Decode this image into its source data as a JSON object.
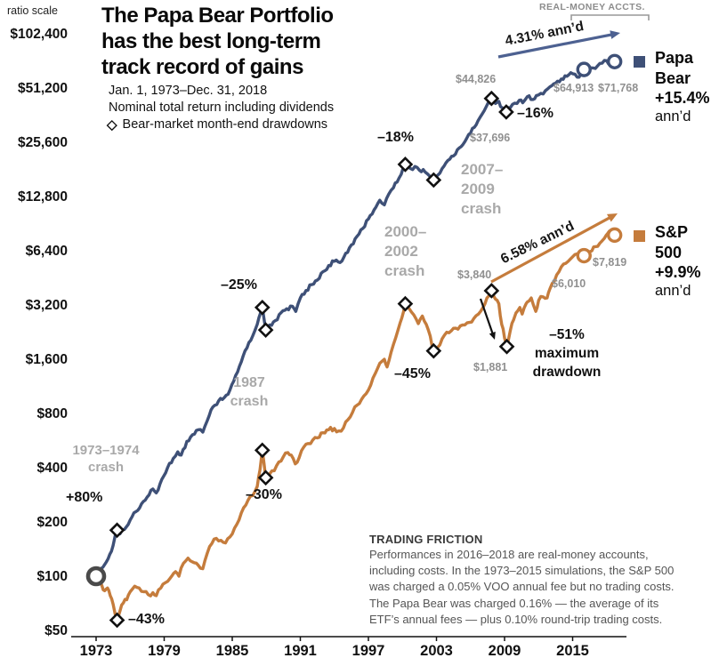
{
  "header": {
    "ratio_scale": "ratio scale",
    "title": "The Papa Bear Portfolio\nhas the best long-term\ntrack record of gains",
    "subtitle_period": "Jan. 1, 1973–Dec. 31, 2018",
    "subtitle_return": "Nominal total return including dividends",
    "drawdown_glyph": "◇",
    "drawdown_legend": "Bear-market month-end drawdowns",
    "real_money": "REAL-MONEY ACCTS."
  },
  "legend": {
    "papa": {
      "label": "Papa\nBear\n+15.4%",
      "annd": "ann’d",
      "color": "#3e5077"
    },
    "sp": {
      "label": "S&P\n500\n+9.9%",
      "annd": "ann’d",
      "color": "#c57c3c"
    }
  },
  "annotations": {
    "annual_papa": "4.31% ann’d",
    "annual_sp": "6.58% ann’d",
    "crash_7374": "1973–1974\ncrash",
    "crash_1987": "1987\ncrash",
    "crash_2000": "2000–\n2002\ncrash",
    "crash_2007": "2007–\n2009\ncrash",
    "gain_80": "+80%",
    "dd_43": "–43%",
    "dd_25": "–25%",
    "dd_30": "–30%",
    "dd_18": "–18%",
    "dd_45": "–45%",
    "dd_16": "–16%",
    "max_dd": "–51%\nmaximum\ndrawdown",
    "val_44826": "$44,826",
    "val_37696": "$37,696",
    "val_64913": "$64,913",
    "val_71768": "$71,768",
    "val_3840": "$3,840",
    "val_1881": "$1,881",
    "val_6010": "$6,010",
    "val_7819": "$7,819"
  },
  "footnote": {
    "heading": "TRADING FRICTION",
    "body": "Performances in 2016–2018 are real-money accounts,\nincluding costs. In the 1973–2015 simulations, the S&P 500\nwas charged a 0.05% VOO annual fee but no trading costs.\nThe Papa Bear was charged 0.16% — the average of its\nETF’s annual fees — plus 0.10% round-trip trading costs.",
    "heading_color": "#3a3a3a",
    "body_color": "#555555"
  },
  "chart_data": {
    "type": "line",
    "title": "The Papa Bear Portfolio has the best long-term track record of gains",
    "xlabel": "",
    "ylabel": "ratio scale (log2)",
    "y_scale": "log2",
    "grid": false,
    "legend_position": "right",
    "x_range": [
      1973,
      2019
    ],
    "y_range": [
      50,
      102400
    ],
    "x_ticks": [
      1973,
      1979,
      1985,
      1991,
      1997,
      2003,
      2009,
      2015
    ],
    "y_ticks": [
      {
        "v": 102400,
        "label": "$102,400"
      },
      {
        "v": 51200,
        "label": "$51,200"
      },
      {
        "v": 25600,
        "label": "$25,600"
      },
      {
        "v": 12800,
        "label": "$12,800"
      },
      {
        "v": 6400,
        "label": "$6,400"
      },
      {
        "v": 3200,
        "label": "$3,200"
      },
      {
        "v": 1600,
        "label": "$1,600"
      },
      {
        "v": 800,
        "label": "$800"
      },
      {
        "v": 400,
        "label": "$400"
      },
      {
        "v": 200,
        "label": "$200"
      },
      {
        "v": 100,
        "label": "$100"
      },
      {
        "v": 50,
        "label": "$50"
      }
    ],
    "series": [
      {
        "name": "Papa Bear",
        "annualized": "+15.4% ann'd",
        "start_value": 100,
        "final_value": 71768,
        "color": "#3e5077",
        "points": [
          [
            1973.0,
            100
          ],
          [
            1973.3,
            106
          ],
          [
            1973.6,
            112
          ],
          [
            1973.9,
            120
          ],
          [
            1974.2,
            132
          ],
          [
            1974.5,
            148
          ],
          [
            1974.85,
            180
          ],
          [
            1975.1,
            172
          ],
          [
            1975.5,
            182
          ],
          [
            1976.0,
            205
          ],
          [
            1976.5,
            228
          ],
          [
            1977.0,
            252
          ],
          [
            1977.5,
            275
          ],
          [
            1978.0,
            305
          ],
          [
            1978.3,
            290
          ],
          [
            1978.8,
            345
          ],
          [
            1979.3,
            400
          ],
          [
            1979.8,
            450
          ],
          [
            1980.2,
            490
          ],
          [
            1980.5,
            470
          ],
          [
            1981.0,
            560
          ],
          [
            1981.5,
            610
          ],
          [
            1982.0,
            650
          ],
          [
            1982.4,
            630
          ],
          [
            1982.8,
            730
          ],
          [
            1983.3,
            870
          ],
          [
            1983.8,
            940
          ],
          [
            1984.3,
            980
          ],
          [
            1984.8,
            1080
          ],
          [
            1985.3,
            1300
          ],
          [
            1985.8,
            1550
          ],
          [
            1986.3,
            1850
          ],
          [
            1986.8,
            2150
          ],
          [
            1987.2,
            2500
          ],
          [
            1987.65,
            3100
          ],
          [
            1987.95,
            2325
          ],
          [
            1988.3,
            2480
          ],
          [
            1988.8,
            2620
          ],
          [
            1989.3,
            2900
          ],
          [
            1989.8,
            3050
          ],
          [
            1990.3,
            3150
          ],
          [
            1990.6,
            2950
          ],
          [
            1991.0,
            3500
          ],
          [
            1991.5,
            3850
          ],
          [
            1992.0,
            4150
          ],
          [
            1992.5,
            4400
          ],
          [
            1993.0,
            4900
          ],
          [
            1993.5,
            5300
          ],
          [
            1994.0,
            5600
          ],
          [
            1994.5,
            5500
          ],
          [
            1995.0,
            6200
          ],
          [
            1995.5,
            6900
          ],
          [
            1996.0,
            7700
          ],
          [
            1996.5,
            8500
          ],
          [
            1997.0,
            9600
          ],
          [
            1997.5,
            10800
          ],
          [
            1998.0,
            12200
          ],
          [
            1998.4,
            11500
          ],
          [
            1998.8,
            13200
          ],
          [
            1999.2,
            14300
          ],
          [
            1999.7,
            16200
          ],
          [
            2000.25,
            19300
          ],
          [
            2000.7,
            18300
          ],
          [
            2001.1,
            18800
          ],
          [
            2001.5,
            17900
          ],
          [
            2002.0,
            17500
          ],
          [
            2002.4,
            16600
          ],
          [
            2002.75,
            15800
          ],
          [
            2003.1,
            16800
          ],
          [
            2003.5,
            18300
          ],
          [
            2004.0,
            20300
          ],
          [
            2004.5,
            21500
          ],
          [
            2005.0,
            23800
          ],
          [
            2005.5,
            25800
          ],
          [
            2006.0,
            28800
          ],
          [
            2006.5,
            32000
          ],
          [
            2007.0,
            36500
          ],
          [
            2007.4,
            40500
          ],
          [
            2007.85,
            44826
          ],
          [
            2008.2,
            42000
          ],
          [
            2008.5,
            43200
          ],
          [
            2008.8,
            39800
          ],
          [
            2009.15,
            37696
          ],
          [
            2009.5,
            39800
          ],
          [
            2009.9,
            42200
          ],
          [
            2010.3,
            43800
          ],
          [
            2010.6,
            42400
          ],
          [
            2011.0,
            45800
          ],
          [
            2011.5,
            44200
          ],
          [
            2011.8,
            46500
          ],
          [
            2012.2,
            47800
          ],
          [
            2012.6,
            49500
          ],
          [
            2013.0,
            52000
          ],
          [
            2013.5,
            54500
          ],
          [
            2014.0,
            57500
          ],
          [
            2014.5,
            59500
          ],
          [
            2015.0,
            61500
          ],
          [
            2015.4,
            58800
          ],
          [
            2015.75,
            62000
          ],
          [
            2016.0,
            64913
          ],
          [
            2016.4,
            63200
          ],
          [
            2016.8,
            66200
          ],
          [
            2017.2,
            68000
          ],
          [
            2017.6,
            70300
          ],
          [
            2018.0,
            72600
          ],
          [
            2018.3,
            69800
          ],
          [
            2018.7,
            71768
          ]
        ]
      },
      {
        "name": "S&P 500",
        "annualized": "+9.9% ann'd",
        "start_value": 100,
        "final_value": 7819,
        "color": "#c57c3c",
        "points": [
          [
            1973.0,
            100
          ],
          [
            1973.25,
            94
          ],
          [
            1973.5,
            89
          ],
          [
            1973.75,
            83
          ],
          [
            1974.0,
            86
          ],
          [
            1974.25,
            78
          ],
          [
            1974.5,
            70
          ],
          [
            1974.85,
            57
          ],
          [
            1975.1,
            64
          ],
          [
            1975.4,
            71
          ],
          [
            1975.7,
            74
          ],
          [
            1976.0,
            82
          ],
          [
            1976.4,
            88
          ],
          [
            1976.8,
            86
          ],
          [
            1977.2,
            82
          ],
          [
            1977.6,
            79
          ],
          [
            1978.0,
            81
          ],
          [
            1978.3,
            78
          ],
          [
            1978.7,
            86
          ],
          [
            1979.1,
            92
          ],
          [
            1979.5,
            97
          ],
          [
            1980.0,
            106
          ],
          [
            1980.3,
            100
          ],
          [
            1980.7,
            118
          ],
          [
            1981.1,
            126
          ],
          [
            1981.5,
            120
          ],
          [
            1982.0,
            115
          ],
          [
            1982.4,
            110
          ],
          [
            1982.8,
            134
          ],
          [
            1983.2,
            152
          ],
          [
            1983.6,
            162
          ],
          [
            1984.0,
            158
          ],
          [
            1984.4,
            153
          ],
          [
            1984.8,
            165
          ],
          [
            1985.2,
            185
          ],
          [
            1985.6,
            205
          ],
          [
            1986.0,
            240
          ],
          [
            1986.4,
            265
          ],
          [
            1986.8,
            280
          ],
          [
            1987.2,
            315
          ],
          [
            1987.45,
            390
          ],
          [
            1987.65,
            500
          ],
          [
            1987.95,
            352
          ],
          [
            1988.3,
            370
          ],
          [
            1988.7,
            385
          ],
          [
            1989.1,
            430
          ],
          [
            1989.5,
            460
          ],
          [
            1989.9,
            485
          ],
          [
            1990.2,
            470
          ],
          [
            1990.55,
            420
          ],
          [
            1990.9,
            455
          ],
          [
            1991.3,
            520
          ],
          [
            1991.7,
            545
          ],
          [
            1992.1,
            570
          ],
          [
            1992.5,
            585
          ],
          [
            1993.0,
            625
          ],
          [
            1993.5,
            650
          ],
          [
            1994.0,
            660
          ],
          [
            1994.4,
            640
          ],
          [
            1994.8,
            665
          ],
          [
            1995.2,
            740
          ],
          [
            1995.6,
            810
          ],
          [
            1996.0,
            890
          ],
          [
            1996.4,
            960
          ],
          [
            1996.8,
            1030
          ],
          [
            1997.2,
            1150
          ],
          [
            1997.6,
            1330
          ],
          [
            1998.0,
            1520
          ],
          [
            1998.4,
            1600
          ],
          [
            1998.65,
            1450
          ],
          [
            1999.0,
            1750
          ],
          [
            1999.4,
            2100
          ],
          [
            1999.8,
            2550
          ],
          [
            2000.25,
            3250
          ],
          [
            2000.6,
            3050
          ],
          [
            2001.0,
            2820
          ],
          [
            2001.4,
            2520
          ],
          [
            2001.75,
            2780
          ],
          [
            2002.1,
            2500
          ],
          [
            2002.45,
            2150
          ],
          [
            2002.75,
            1780
          ],
          [
            2003.1,
            1860
          ],
          [
            2003.5,
            2080
          ],
          [
            2003.9,
            2260
          ],
          [
            2004.3,
            2300
          ],
          [
            2004.7,
            2380
          ],
          [
            2005.1,
            2450
          ],
          [
            2005.5,
            2480
          ],
          [
            2005.9,
            2560
          ],
          [
            2006.3,
            2700
          ],
          [
            2006.7,
            2850
          ],
          [
            2007.1,
            3100
          ],
          [
            2007.45,
            3500
          ],
          [
            2007.85,
            3840
          ],
          [
            2008.2,
            3450
          ],
          [
            2008.5,
            3250
          ],
          [
            2008.75,
            2500
          ],
          [
            2009.0,
            2100
          ],
          [
            2009.2,
            1881
          ],
          [
            2009.5,
            2300
          ],
          [
            2009.8,
            2650
          ],
          [
            2010.0,
            2888
          ],
          [
            2010.35,
            3100
          ],
          [
            2010.55,
            2850
          ],
          [
            2010.9,
            3250
          ],
          [
            2011.0,
            3324
          ],
          [
            2011.35,
            3500
          ],
          [
            2011.75,
            2950
          ],
          [
            2012.0,
            3394
          ],
          [
            2012.4,
            3550
          ],
          [
            2012.75,
            3500
          ],
          [
            2013.0,
            3937
          ],
          [
            2013.4,
            4350
          ],
          [
            2013.8,
            4900
          ],
          [
            2014.0,
            5213
          ],
          [
            2014.4,
            5450
          ],
          [
            2014.8,
            5750
          ],
          [
            2015.0,
            5927
          ],
          [
            2015.4,
            6150
          ],
          [
            2015.7,
            5800
          ],
          [
            2016.0,
            6010
          ],
          [
            2016.3,
            6150
          ],
          [
            2016.7,
            6400
          ],
          [
            2017.0,
            6740
          ],
          [
            2017.4,
            7050
          ],
          [
            2017.8,
            7500
          ],
          [
            2018.1,
            8000
          ],
          [
            2018.4,
            8300
          ],
          [
            2018.7,
            7819
          ]
        ]
      }
    ],
    "drawdown_markers": {
      "papa": [
        [
          1974.85,
          180
        ],
        [
          1987.65,
          3100
        ],
        [
          1987.95,
          2325
        ],
        [
          2000.25,
          19300
        ],
        [
          2002.75,
          15800
        ],
        [
          2007.85,
          44826
        ],
        [
          2009.15,
          37696
        ]
      ],
      "sp": [
        [
          1974.85,
          57
        ],
        [
          1987.65,
          500
        ],
        [
          1987.95,
          352
        ],
        [
          2000.25,
          3250
        ],
        [
          2002.75,
          1780
        ],
        [
          2007.85,
          3840
        ],
        [
          2009.2,
          1881
        ]
      ]
    },
    "real_money_markers": {
      "papa": [
        [
          2016.0,
          64913
        ],
        [
          2018.7,
          71768
        ]
      ],
      "sp": [
        [
          2016.0,
          6010
        ],
        [
          2018.7,
          7819
        ]
      ]
    },
    "start_marker": [
      1973.0,
      100
    ]
  }
}
